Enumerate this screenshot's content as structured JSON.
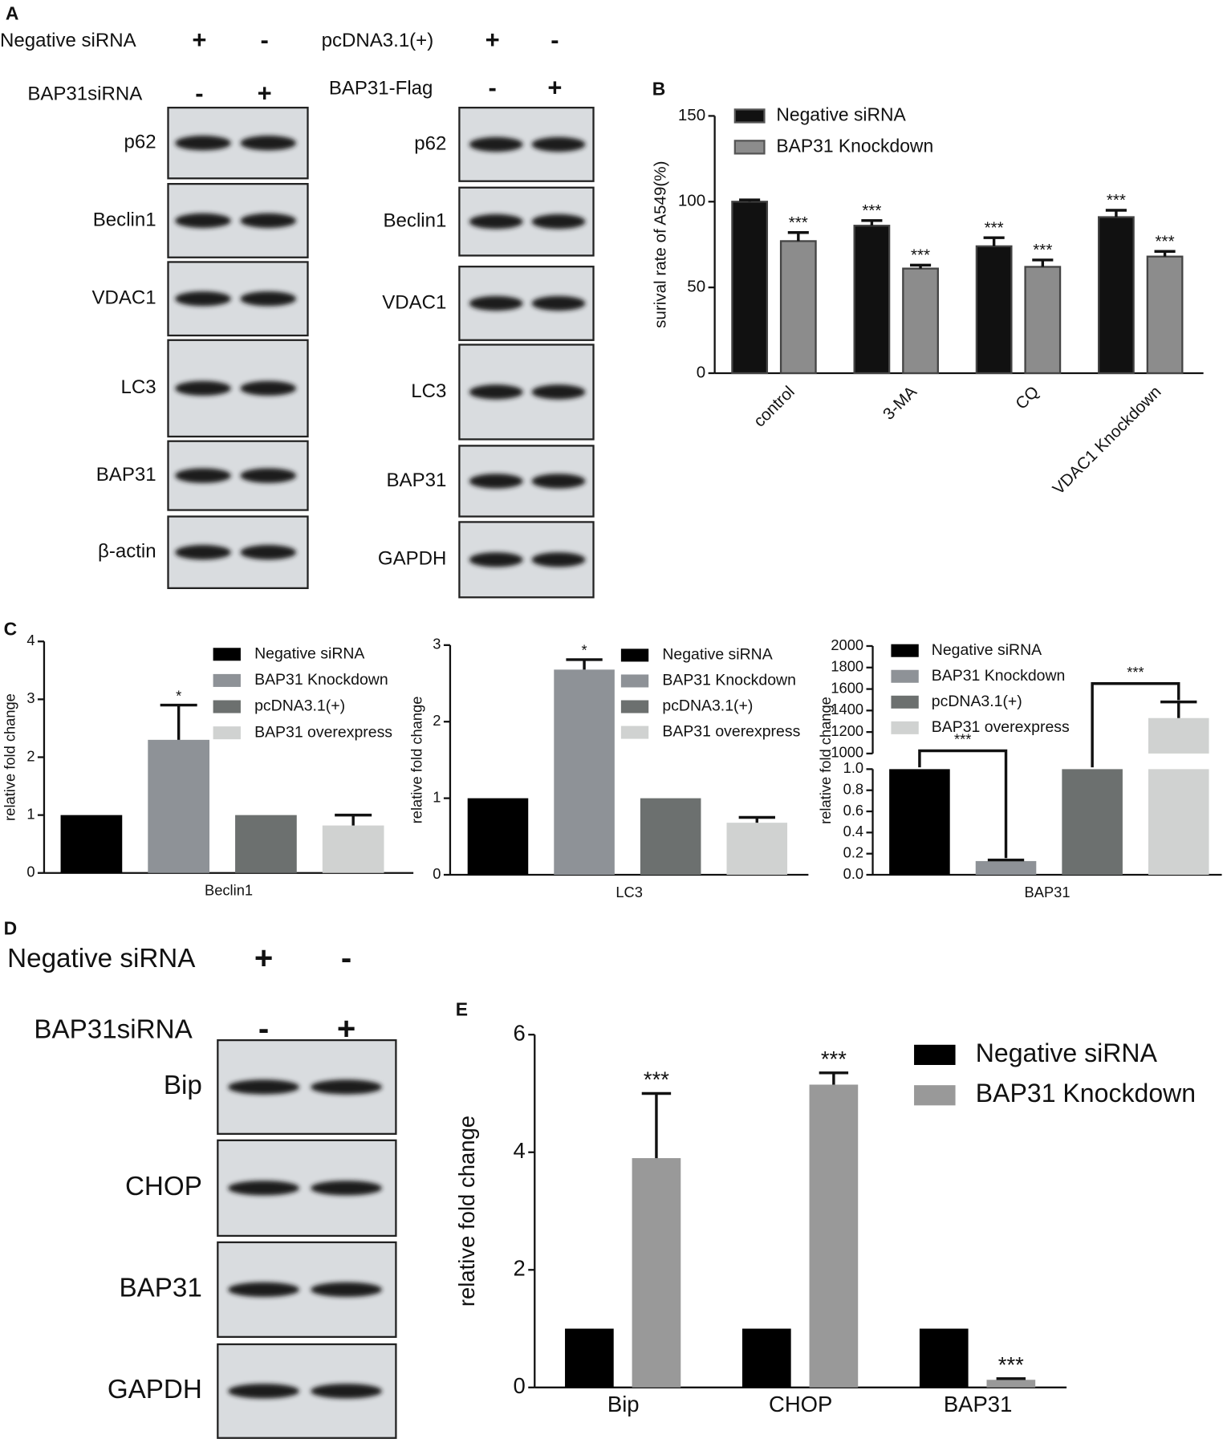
{
  "panels": {
    "a": "A",
    "b": "B",
    "c": "C",
    "d": "D",
    "e": "E"
  },
  "blots": [
    {
      "conditions": [
        {
          "label": "Negative siRNA",
          "marks": [
            "+",
            "-"
          ]
        },
        {
          "label": "BAP31siRNA",
          "marks": [
            "-",
            "+"
          ]
        }
      ],
      "bands": [
        "p62",
        "Beclin1",
        "VDAC1",
        "LC3",
        "BAP31",
        "β-actin"
      ]
    },
    {
      "conditions": [
        {
          "label": "pcDNA3.1(+)",
          "marks": [
            "+",
            "-"
          ]
        },
        {
          "label": "BAP31-Flag",
          "marks": [
            "-",
            "+"
          ]
        }
      ],
      "bands": [
        "p62",
        "Beclin1",
        "VDAC1",
        "LC3",
        "BAP31",
        "GAPDH"
      ]
    },
    {
      "conditions": [
        {
          "label": "Negative siRNA",
          "marks": [
            "+",
            "-"
          ]
        },
        {
          "label": "BAP31siRNA",
          "marks": [
            "-",
            "+"
          ]
        }
      ],
      "bands": [
        "Bip",
        "CHOP",
        "BAP31",
        "GAPDH"
      ]
    }
  ],
  "chart_data": [
    {
      "type": "bar",
      "ylabel": "surival rate of A549(%)",
      "categories": [
        "control",
        "3-MA",
        "CQ",
        "VDAC1 Knockdown"
      ],
      "series": [
        {
          "name": "Negative siRNA",
          "color": "#111111",
          "values": [
            100,
            86,
            74,
            91
          ],
          "errors": [
            1,
            3,
            5,
            4
          ],
          "significance": [
            null,
            "***",
            "***",
            "***"
          ]
        },
        {
          "name": "BAP31 Knockdown",
          "color": "#8c8c8c",
          "values": [
            77,
            61,
            62,
            68
          ],
          "errors": [
            5,
            2,
            4,
            3
          ],
          "significance": [
            "***",
            "***",
            "***",
            "***"
          ]
        }
      ],
      "ylim": [
        0,
        150
      ],
      "yticks": [
        0,
        50,
        100,
        150
      ],
      "legend": "upper left"
    },
    {
      "type": "bar",
      "ylabel": "relative fold change",
      "categories": [
        "Beclin1"
      ],
      "series": [
        {
          "name": "Negative siRNA",
          "color": "#000000",
          "values": [
            1
          ]
        },
        {
          "name": "BAP31 Knockdown",
          "color": "#8e9297",
          "values": [
            2.3
          ],
          "errors": [
            0.6
          ],
          "significance": [
            "*"
          ]
        },
        {
          "name": "pcDNA3.1(+)",
          "color": "#6c706f",
          "values": [
            1
          ]
        },
        {
          "name": "BAP31 overexpress",
          "color": "#d0d2d1",
          "values": [
            0.82
          ],
          "errors": [
            0.18
          ]
        }
      ],
      "ylim": [
        0,
        4
      ],
      "yticks": [
        0,
        1,
        2,
        3,
        4
      ],
      "legend": "upper right"
    },
    {
      "type": "bar",
      "ylabel": "relative fold change",
      "categories": [
        "LC3"
      ],
      "series": [
        {
          "name": "Negative siRNA",
          "color": "#000000",
          "values": [
            1
          ]
        },
        {
          "name": "BAP31 Knockdown",
          "color": "#8e9297",
          "values": [
            2.68
          ],
          "errors": [
            0.13
          ],
          "significance": [
            "*"
          ]
        },
        {
          "name": "pcDNA3.1(+)",
          "color": "#6c706f",
          "values": [
            1
          ]
        },
        {
          "name": "BAP31 overexpress",
          "color": "#d0d2d1",
          "values": [
            0.68
          ],
          "errors": [
            0.07
          ]
        }
      ],
      "ylim": [
        0,
        3
      ],
      "yticks": [
        0,
        1,
        2,
        3
      ],
      "legend": "upper right"
    },
    {
      "type": "bar",
      "ylabel": "relative fold change",
      "categories": [
        "BAP31"
      ],
      "series": [
        {
          "name": "Negative siRNA",
          "color": "#000000",
          "values": [
            1
          ]
        },
        {
          "name": "BAP31 Knockdown",
          "color": "#8e9297",
          "values": [
            0.13
          ],
          "errors": [
            0.01
          ]
        },
        {
          "name": "pcDNA3.1(+)",
          "color": "#6c706f",
          "values": [
            1
          ]
        },
        {
          "name": "BAP31 overexpress",
          "color": "#d0d2d1",
          "values": [
            1330
          ],
          "errors": [
            150
          ]
        }
      ],
      "broken_axis": {
        "lower": {
          "ylim": [
            0,
            1
          ],
          "yticks": [
            {
              "value": 0,
              "label": "0.0"
            },
            0.2,
            0.4,
            0.6,
            0.8,
            {
              "value": 1,
              "label": "1.0"
            }
          ]
        },
        "upper": {
          "ylim": [
            1000,
            2000
          ],
          "yticks": [
            1000,
            1200,
            1400,
            1600,
            1800,
            2000
          ]
        }
      },
      "comparisons": [
        {
          "from": "Negative siRNA",
          "to": "BAP31 Knockdown",
          "label": "***"
        },
        {
          "from": "pcDNA3.1(+)",
          "to": "BAP31 overexpress",
          "label": "***"
        }
      ],
      "legend": "upper right"
    },
    {
      "type": "bar",
      "ylabel": "relative fold change",
      "categories": [
        "Bip",
        "CHOP",
        "BAP31"
      ],
      "series": [
        {
          "name": "Negative siRNA",
          "color": "#000000",
          "values": [
            1,
            1,
            1
          ]
        },
        {
          "name": "BAP31 Knockdown",
          "color": "#999999",
          "values": [
            3.9,
            5.15,
            0.13
          ],
          "errors": [
            1.1,
            0.2,
            0.02
          ],
          "significance": [
            "***",
            "***",
            "***"
          ]
        }
      ],
      "ylim": [
        0,
        6
      ],
      "yticks": [
        0,
        2,
        4,
        6
      ],
      "legend": "upper right"
    }
  ]
}
